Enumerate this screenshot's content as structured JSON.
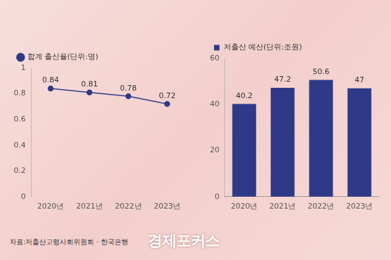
{
  "chart_data": [
    {
      "type": "line",
      "categories": [
        "2020년",
        "2021년",
        "2022년",
        "2023년"
      ],
      "series": [
        {
          "name": "합계 출산율(단위:명)",
          "color": "#2e3a87",
          "values": [
            0.84,
            0.81,
            0.78,
            0.72
          ],
          "marker": "circle"
        }
      ],
      "ylim": [
        0,
        1
      ],
      "yticks": [
        0,
        0.2,
        0.4,
        0.6,
        0.8,
        1
      ],
      "grid": false,
      "data_labels": true,
      "legend": "top-left"
    },
    {
      "type": "bar",
      "categories": [
        "2020년",
        "2021년",
        "2022년",
        "2023년"
      ],
      "series": [
        {
          "name": "저출산 예산(단위:조원)",
          "color": "#2e3a87",
          "values": [
            40.2,
            47.2,
            50.6,
            47
          ]
        }
      ],
      "ylim": [
        0,
        60
      ],
      "yticks": [
        0,
        20,
        40,
        60
      ],
      "grid": false,
      "data_labels": true,
      "legend": "top-left"
    }
  ],
  "source": "자료:저출산고령사회위원회 · 한국은행",
  "logo": "경제포커스"
}
